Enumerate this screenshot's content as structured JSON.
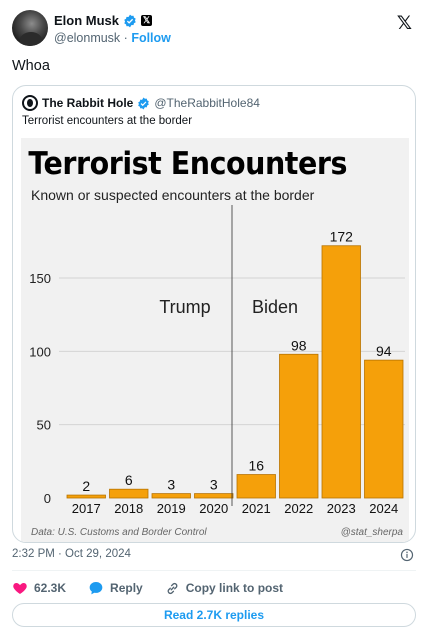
{
  "author": {
    "name": "Elon Musk",
    "handle": "@elonmusk",
    "follow_label": "Follow"
  },
  "tweet": {
    "text": "Whoa",
    "timestamp": "2:32 PM · Oct 29, 2024"
  },
  "quoted": {
    "name": "The Rabbit Hole",
    "handle": "@TheRabbitHole84",
    "text": "Terrorist encounters at the border"
  },
  "chart_data": {
    "type": "bar",
    "title": "Terrorist Encounters",
    "subtitle": "Known or suspected encounters at the border",
    "categories": [
      "2017",
      "2018",
      "2019",
      "2020",
      "2021",
      "2022",
      "2023",
      "2024"
    ],
    "values": [
      2,
      6,
      3,
      3,
      16,
      98,
      172,
      94
    ],
    "yticks": [
      0,
      50,
      100,
      150
    ],
    "ylim": [
      0,
      180
    ],
    "xlabel": "",
    "ylabel": "",
    "grid": true,
    "bar_color": "#f5a00a",
    "annotations": [
      "Trump",
      "Biden"
    ],
    "source": "Data: U.S. Customs and Border Control",
    "credit": "@stat_sherpa"
  },
  "actions": {
    "like_count": "62.3K",
    "reply_label": "Reply",
    "copy_label": "Copy link to post"
  },
  "replies_button": "Read 2.7K replies",
  "colors": {
    "accent": "#1d9bf0",
    "like": "#f91880",
    "verified": "#1d9bf0"
  },
  "icons": [
    "verified-badge-icon",
    "x-affiliate-icon",
    "x-logo-icon",
    "info-icon",
    "heart-icon",
    "reply-bubble-icon",
    "link-icon"
  ]
}
